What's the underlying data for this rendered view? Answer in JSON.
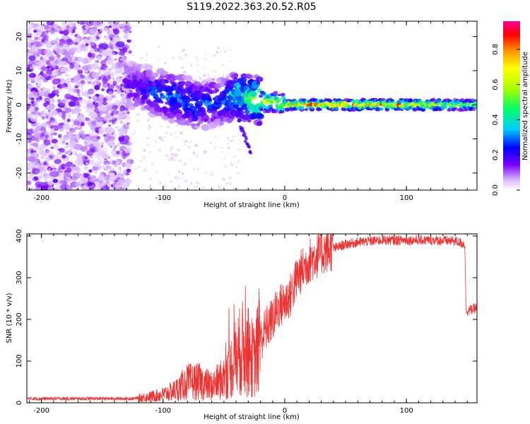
{
  "title": "S119.2022.363.20.52.R05",
  "chart_data": [
    {
      "type": "heatmap",
      "name": "spectrogram",
      "xlabel": "Height of straight line (km)",
      "ylabel": "Frequency (Hz)",
      "xlim": [
        -212,
        158
      ],
      "ylim": [
        -25,
        24.5
      ],
      "xticks": [
        -200,
        -100,
        0,
        100
      ],
      "xtick_labels": [
        "-200",
        "-100",
        "0",
        "100"
      ],
      "yticks": [
        -20,
        -10,
        0,
        10,
        20
      ],
      "ytick_labels": [
        "-20",
        "-10",
        "0",
        "10",
        "20"
      ],
      "colorbar": {
        "label": "Normalized spectral amplitude",
        "range": [
          0.0,
          0.96
        ],
        "ticks": [
          0.0,
          0.2,
          0.4,
          0.6,
          0.8
        ],
        "tick_labels": [
          "0.0",
          "0.2",
          "0.4",
          "0.6",
          "0.8"
        ],
        "colormap": "hsv"
      },
      "ridge": {
        "description_points_x": [
          -130,
          -110,
          -90,
          -70,
          -50,
          -40,
          -30,
          -20,
          -10,
          0,
          20,
          60,
          100,
          158
        ],
        "frequency_center": [
          6,
          4,
          2,
          0,
          1,
          3,
          2,
          1,
          1,
          0,
          0,
          0,
          0,
          0
        ],
        "amplitude": [
          0.2,
          0.3,
          0.35,
          0.35,
          0.3,
          0.5,
          0.6,
          0.7,
          0.7,
          0.8,
          0.9,
          0.9,
          0.85,
          0.6
        ]
      }
    },
    {
      "type": "line",
      "name": "snr",
      "xlabel": "Height of straight line (km)",
      "ylabel": "SNR (10 * v/v)",
      "xlim": [
        -212,
        158
      ],
      "ylim": [
        0,
        405
      ],
      "xticks": [
        -200,
        -100,
        0,
        100
      ],
      "xtick_labels": [
        "-200",
        "-100",
        "0",
        "100"
      ],
      "yticks": [
        0,
        100,
        200,
        300,
        400
      ],
      "ytick_labels": [
        "0",
        "100",
        "200",
        "300",
        "400"
      ],
      "color": "#ee3333",
      "series": [
        {
          "name": "SNR",
          "x": [
            -212,
            -180,
            -150,
            -125,
            -110,
            -100,
            -90,
            -80,
            -70,
            -60,
            -50,
            -45,
            -40,
            -35,
            -30,
            -25,
            -20,
            -15,
            -10,
            -5,
            0,
            5,
            10,
            20,
            30,
            40,
            50,
            60,
            80,
            100,
            120,
            140,
            148,
            149,
            155,
            158
          ],
          "y": [
            10,
            10,
            10,
            10,
            15,
            20,
            30,
            50,
            50,
            40,
            60,
            80,
            110,
            130,
            120,
            100,
            150,
            180,
            200,
            230,
            240,
            260,
            300,
            340,
            360,
            370,
            380,
            385,
            390,
            390,
            390,
            388,
            380,
            220,
            225,
            228
          ]
        }
      ]
    }
  ]
}
